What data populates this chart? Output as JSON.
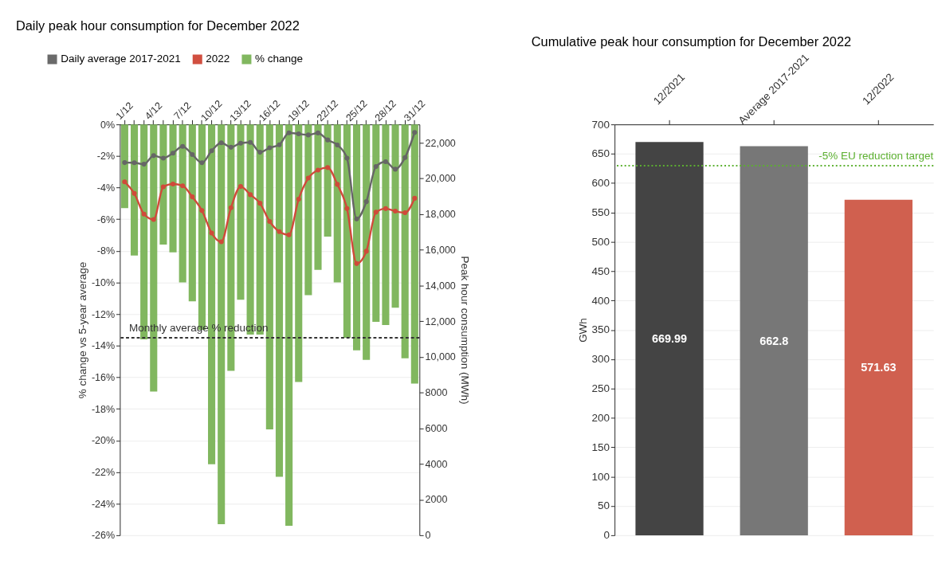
{
  "chart_data": [
    {
      "type": "bar",
      "title": "Daily peak hour consumption for December 2022",
      "categories": [
        "1/12",
        null,
        null,
        "4/12",
        null,
        null,
        "7/12",
        null,
        null,
        "10/12",
        null,
        null,
        "13/12",
        null,
        null,
        "16/12",
        null,
        null,
        "19/12",
        null,
        null,
        "22/12",
        null,
        null,
        "25/12",
        null,
        null,
        "28/12",
        null,
        null,
        "31/12"
      ],
      "series": [
        {
          "name": "Daily average 2017-2021",
          "type": "line",
          "axis": "y2",
          "color": "#666666",
          "values": [
            20890,
            20880,
            20800,
            21280,
            21140,
            21420,
            21800,
            21340,
            20880,
            21550,
            22000,
            21750,
            21980,
            22020,
            21470,
            21720,
            21890,
            22560,
            22500,
            22440,
            22550,
            22160,
            21880,
            21140,
            17730,
            18700,
            20670,
            20940,
            20520,
            21170,
            22580
          ]
        },
        {
          "name": "2022",
          "type": "line",
          "axis": "y2",
          "color": "#d04a3a",
          "values": [
            19810,
            19160,
            18000,
            17700,
            19530,
            19690,
            19590,
            18970,
            18200,
            16940,
            16450,
            18360,
            19550,
            19090,
            18610,
            17590,
            17020,
            16840,
            18840,
            20020,
            20470,
            20610,
            19670,
            18310,
            15230,
            15920,
            18110,
            18310,
            18170,
            18080,
            18890
          ]
        },
        {
          "name": "% change",
          "type": "bar",
          "color": "#7db55a",
          "values": [
            -5.3,
            -8.3,
            -13.6,
            -16.9,
            -7.6,
            -8.1,
            -10.0,
            -11.2,
            -13.0,
            -21.5,
            -25.3,
            -15.6,
            -11.1,
            -13.3,
            -13.3,
            -19.3,
            -22.3,
            -25.4,
            -16.3,
            -10.8,
            -9.2,
            -7.1,
            -10.0,
            -13.5,
            -14.3,
            -14.9,
            -12.5,
            -12.7,
            -11.6,
            -14.8,
            -16.4
          ]
        }
      ],
      "ylabel": "% change vs 5-year average",
      "y2label": "Peak hour consumption (MWh)",
      "ylim": [
        -26,
        0
      ],
      "yticks": [
        {
          "value": 0,
          "label": "0%"
        },
        {
          "value": -2,
          "label": "-2%"
        },
        {
          "value": -4,
          "label": "-4%"
        },
        {
          "value": -6,
          "label": "-6%"
        },
        {
          "value": -8,
          "label": "-8%"
        },
        {
          "value": -10,
          "label": "-10%"
        },
        {
          "value": -12,
          "label": "-12%"
        },
        {
          "value": -14,
          "label": "-14%"
        },
        {
          "value": -16,
          "label": "-16%"
        },
        {
          "value": -18,
          "label": "-18%"
        },
        {
          "value": -20,
          "label": "-20%"
        },
        {
          "value": -22,
          "label": "-22%"
        },
        {
          "value": -24,
          "label": "-24%"
        },
        {
          "value": -26,
          "label": "-26%"
        }
      ],
      "y2lim": [
        0,
        23030
      ],
      "y2ticks": [
        0,
        2000,
        4000,
        6000,
        8000,
        {
          "value": 10000,
          "label": "10,000"
        },
        {
          "value": 12000,
          "label": "12,000"
        },
        {
          "value": 14000,
          "label": "14,000"
        },
        {
          "value": 16000,
          "label": "16,000"
        },
        {
          "value": 18000,
          "label": "18,000"
        },
        {
          "value": 20000,
          "label": "20,000"
        },
        {
          "value": 22000,
          "label": "22,000"
        }
      ],
      "ref_lines": [
        {
          "axis": "y",
          "value": -13.5,
          "label": "Monthly average % reduction",
          "color": "#333333",
          "line_style": "dashed"
        }
      ],
      "grid": "y",
      "legend": "top left",
      "marker": "circle",
      "line_style": "solid"
    },
    {
      "type": "bar",
      "title": "Cumulative peak hour consumption for December 2022",
      "categories": [
        "12/2021",
        "Average 2017-2021",
        "12/2022"
      ],
      "values": [
        669.99,
        662.8,
        571.63
      ],
      "colors": [
        "#444444",
        "#777777",
        "#d0604f"
      ],
      "ylabel": "GWh",
      "ylim": [
        0,
        700
      ],
      "yticks": [
        0,
        50,
        100,
        150,
        200,
        250,
        300,
        350,
        400,
        450,
        500,
        550,
        600,
        650,
        700
      ],
      "ref_lines": [
        {
          "axis": "y",
          "value": 629.7,
          "label": "-5% EU reduction target",
          "color": "#5cb030",
          "line_style": "dotted"
        }
      ],
      "data_labels": true,
      "grid": "y"
    }
  ]
}
